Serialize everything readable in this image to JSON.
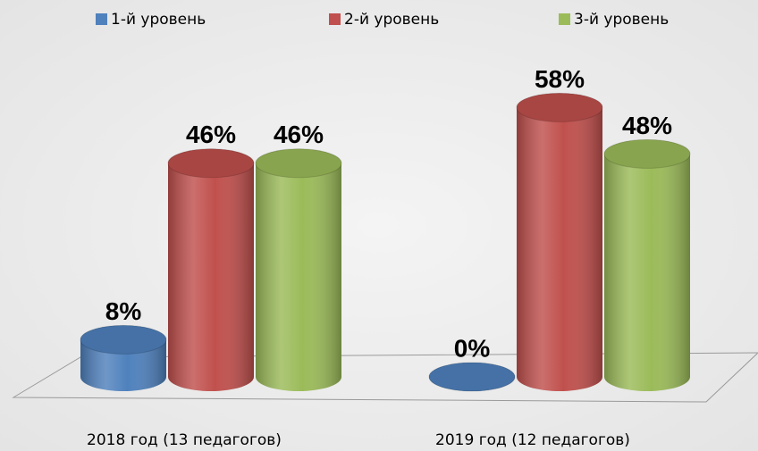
{
  "chart_data": {
    "type": "cylinder-bar",
    "categories": [
      "2018 год (13 педагогов)",
      "2019 год (12 педагогов)"
    ],
    "series": [
      {
        "name": "1-й уровень",
        "color": "#4f81bd",
        "values": [
          8,
          0
        ],
        "value_labels": [
          "8%",
          "0%"
        ]
      },
      {
        "name": "2-й уровень",
        "color": "#c0504d",
        "values": [
          46,
          58
        ],
        "value_labels": [
          "46%",
          "58%"
        ]
      },
      {
        "name": "3-й уровень",
        "color": "#9bbb59",
        "values": [
          46,
          48
        ],
        "value_labels": [
          "46%",
          "48%"
        ]
      }
    ],
    "legend": "top"
  }
}
